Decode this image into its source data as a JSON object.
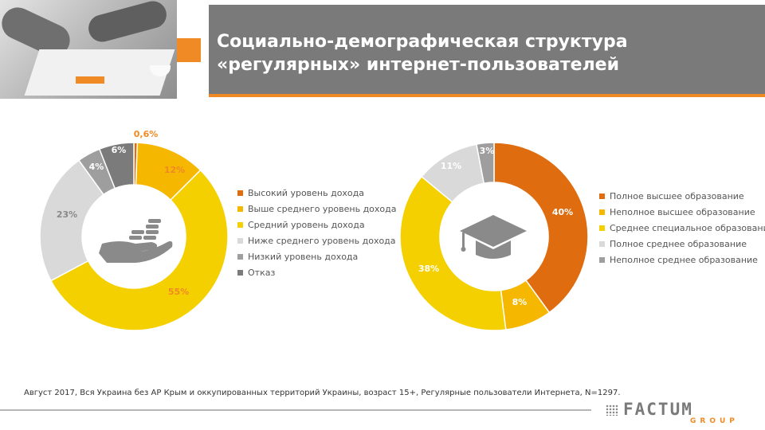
{
  "header": {
    "title_line1": "Социально-демографическая структура",
    "title_line2": "«регулярных» интернет-пользователей",
    "accent_color": "#f08a24",
    "title_bg": "#7a7a7a"
  },
  "chart_data": [
    {
      "type": "pie",
      "variant": "donut",
      "title": "",
      "categories": [
        "Высокий уровень дохода",
        "Выше среднего уровень дохода",
        "Средний уровень дохода",
        "Ниже среднего уровень дохода",
        "Низкий уровень дохода",
        "Отказ"
      ],
      "values": [
        0.6,
        12,
        55,
        23,
        4,
        6
      ],
      "labels": [
        "0,6%",
        "12%",
        "55%",
        "23%",
        "4%",
        "6%"
      ],
      "colors": [
        "#e06c10",
        "#f6b700",
        "#f5d000",
        "#d9d9d9",
        "#9e9e9e",
        "#7b7b7b"
      ],
      "center_icon": "hand-coins-icon",
      "legend_position": "right"
    },
    {
      "type": "pie",
      "variant": "donut",
      "title": "",
      "categories": [
        "Полное высшее образование",
        "Неполное высшее образование",
        "Среднее специальное образование",
        "Полное среднее образование",
        "Неполное среднее образование"
      ],
      "values": [
        40,
        8,
        38,
        11,
        3
      ],
      "labels": [
        "40%",
        "8%",
        "38%",
        "11%",
        "3%"
      ],
      "colors": [
        "#e06c10",
        "#f6b700",
        "#f5d000",
        "#d9d9d9",
        "#9e9e9e"
      ],
      "center_icon": "graduation-cap-icon",
      "legend_position": "right"
    }
  ],
  "footnote": "Август 2017, Вся Украина без АР Крым и оккупированных территорий Украины, возраст 15+, Регулярные пользователи Интернета, N=1297.",
  "logo": {
    "word": "FACTUM",
    "sub": "GROUP"
  }
}
